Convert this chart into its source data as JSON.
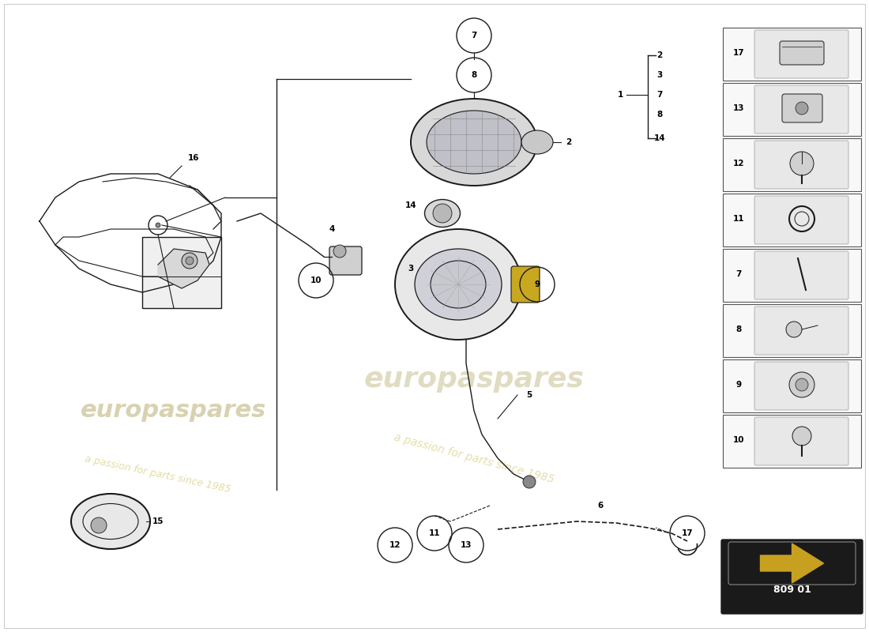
{
  "bg_color": "#ffffff",
  "line_color": "#1a1a1a",
  "wm_color1": "#c8c090",
  "wm_color2": "#d4c870",
  "part_number": "809 01",
  "sidebar_items": [
    "17",
    "13",
    "12",
    "11",
    "7",
    "8",
    "9",
    "10"
  ],
  "callout_nums": [
    "2",
    "3",
    "7",
    "8",
    "14"
  ],
  "callout_label": "1",
  "label_16": "16",
  "label_15": "15",
  "label_2": "2",
  "label_3": "3",
  "label_4": "4",
  "label_5": "5",
  "label_6": "6",
  "label_7": "7",
  "label_8": "8",
  "label_9": "9",
  "label_10": "10",
  "label_11": "11",
  "label_12": "12",
  "label_13": "13",
  "label_14": "14",
  "label_17": "17"
}
